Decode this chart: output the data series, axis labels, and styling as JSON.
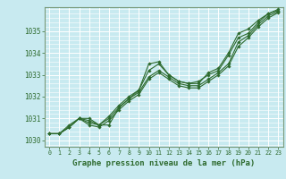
{
  "title": "Graphe pression niveau de la mer (hPa)",
  "bg_color": "#c8eaf0",
  "grid_color": "#ffffff",
  "line_color": "#2d6a2d",
  "spine_color": "#7a9a7a",
  "xlim": [
    -0.5,
    23.5
  ],
  "ylim": [
    1029.7,
    1036.1
  ],
  "yticks": [
    1030,
    1031,
    1032,
    1033,
    1034,
    1035
  ],
  "xticks": [
    0,
    1,
    2,
    3,
    4,
    5,
    6,
    7,
    8,
    9,
    10,
    11,
    12,
    13,
    14,
    15,
    16,
    17,
    18,
    19,
    20,
    21,
    22,
    23
  ],
  "series": [
    [
      1030.3,
      1030.3,
      1030.6,
      1031.0,
      1031.0,
      1030.7,
      1030.7,
      1031.5,
      1031.9,
      1032.3,
      1033.5,
      1033.6,
      1033.0,
      1032.7,
      1032.6,
      1032.6,
      1033.1,
      1033.3,
      1034.0,
      1034.9,
      1035.1,
      1035.5,
      1035.8,
      1036.0
    ],
    [
      1030.3,
      1030.3,
      1030.6,
      1031.0,
      1030.8,
      1030.7,
      1031.0,
      1031.5,
      1031.9,
      1032.2,
      1032.9,
      1033.2,
      1032.9,
      1032.6,
      1032.5,
      1032.5,
      1032.8,
      1033.1,
      1033.5,
      1034.5,
      1034.8,
      1035.3,
      1035.7,
      1035.9
    ],
    [
      1030.3,
      1030.3,
      1030.7,
      1031.0,
      1030.9,
      1030.7,
      1031.1,
      1031.6,
      1032.0,
      1032.3,
      1033.2,
      1033.5,
      1033.0,
      1032.7,
      1032.6,
      1032.7,
      1033.0,
      1033.2,
      1033.9,
      1034.7,
      1034.9,
      1035.4,
      1035.8,
      1035.95
    ],
    [
      1030.3,
      1030.3,
      1030.6,
      1031.0,
      1030.7,
      1030.6,
      1030.9,
      1031.4,
      1031.8,
      1032.1,
      1032.8,
      1033.1,
      1032.8,
      1032.5,
      1032.4,
      1032.4,
      1032.7,
      1033.0,
      1033.4,
      1034.3,
      1034.7,
      1035.2,
      1035.6,
      1035.85
    ]
  ],
  "xlabel_fontsize": 6.5,
  "ylabel_fontsize": 5.5,
  "xtick_fontsize": 4.8,
  "ytick_fontsize": 5.5
}
